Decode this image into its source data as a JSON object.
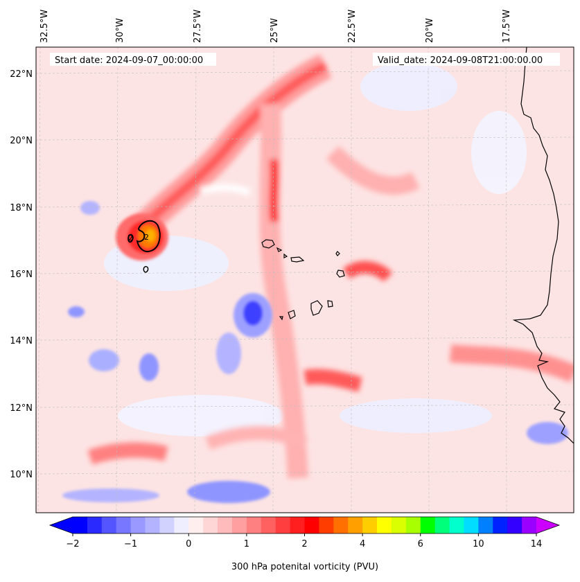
{
  "map": {
    "start_date": "Start date: 2024-09-07_00:00:00",
    "valid_date": "Valid_date: 2024-09-08T21:00:00.00",
    "lon_ticks": [
      "32.5°W",
      "30°W",
      "27.5°W",
      "25°W",
      "22.5°W",
      "20°W",
      "17.5°W"
    ],
    "lat_ticks": [
      "22°N",
      "20°N",
      "18°N",
      "16°N",
      "14°N",
      "12°N",
      "10°N"
    ],
    "contour_labels": [
      "2",
      "2"
    ],
    "extent": {
      "lon_min": -33.0,
      "lon_max": -15.6,
      "lat_min": 8.9,
      "lat_max": 22.8
    },
    "field": "300 hPa potential vorticity"
  },
  "colorbar": {
    "label": "300 hPa potenital vorticity (PVU)",
    "ticks": [
      "−2",
      "−1",
      "0",
      "1",
      "2",
      "4",
      "6",
      "10",
      "14"
    ],
    "colors": [
      "#0000ff",
      "#2a2aff",
      "#5555ff",
      "#7777ff",
      "#9999ff",
      "#b3b3ff",
      "#d2d2ff",
      "#eeeeff",
      "#ffeeee",
      "#ffd6d6",
      "#ffbbbb",
      "#ff9f9f",
      "#ff8080",
      "#ff6060",
      "#ff3f3f",
      "#ff1f1f",
      "#ff0000",
      "#ff3d00",
      "#ff7000",
      "#ff9f00",
      "#ffcd00",
      "#ffff00",
      "#d9ff00",
      "#a8ff00",
      "#00ff00",
      "#00ff7a",
      "#00ffcc",
      "#00ddff",
      "#0080ff",
      "#0022ff",
      "#3300ff",
      "#9900ff"
    ],
    "under_color": "#0000ff",
    "over_color": "#cc00ff"
  }
}
